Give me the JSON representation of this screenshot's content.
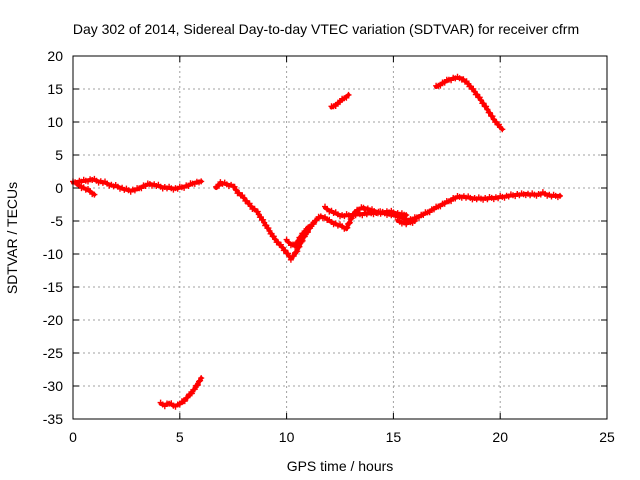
{
  "chart_data": {
    "type": "scatter",
    "title": "Day 302 of 2014, Sidereal Day-to-day VTEC variation (SDTVAR) for receiver cfrm",
    "xlabel": "GPS time / hours",
    "ylabel": "SDTVAR / TECUs",
    "xlim": [
      0,
      25
    ],
    "ylim": [
      -35,
      20
    ],
    "xticks": [
      0,
      5,
      10,
      15,
      20,
      25
    ],
    "yticks": [
      -35,
      -30,
      -25,
      -20,
      -15,
      -10,
      -5,
      0,
      5,
      10,
      15,
      20
    ],
    "grid": true,
    "series_color": "#ff0000",
    "grid_color": "#a0a0a0",
    "series": [
      {
        "name": "main",
        "points": [
          [
            0.0,
            0.8
          ],
          [
            0.3,
            1.0
          ],
          [
            0.6,
            1.1
          ],
          [
            0.9,
            1.3
          ],
          [
            1.2,
            1.0
          ],
          [
            1.5,
            0.8
          ],
          [
            1.8,
            0.4
          ],
          [
            2.1,
            0.2
          ],
          [
            2.4,
            -0.2
          ],
          [
            2.7,
            -0.4
          ],
          [
            3.0,
            -0.2
          ],
          [
            3.3,
            0.3
          ],
          [
            3.6,
            0.6
          ],
          [
            3.9,
            0.4
          ],
          [
            4.2,
            0.1
          ],
          [
            4.5,
            0.0
          ],
          [
            4.8,
            -0.1
          ],
          [
            5.1,
            0.1
          ],
          [
            5.4,
            0.4
          ],
          [
            5.7,
            0.8
          ],
          [
            6.0,
            1.0
          ]
        ]
      },
      {
        "name": "main-arm",
        "points": [
          [
            0.2,
            0.5
          ],
          [
            0.5,
            0.0
          ],
          [
            0.8,
            -0.5
          ],
          [
            1.0,
            -1.0
          ]
        ]
      },
      {
        "name": "main-2",
        "points": [
          [
            6.7,
            0.0
          ],
          [
            6.9,
            0.8
          ],
          [
            7.5,
            0.3
          ],
          [
            7.7,
            -0.6
          ],
          [
            8.0,
            -1.5
          ],
          [
            8.2,
            -2.3
          ],
          [
            8.4,
            -3.0
          ],
          [
            8.6,
            -3.5
          ],
          [
            8.8,
            -4.5
          ],
          [
            9.0,
            -5.5
          ],
          [
            9.2,
            -6.5
          ],
          [
            9.4,
            -7.5
          ],
          [
            9.6,
            -8.3
          ],
          [
            9.8,
            -9.0
          ],
          [
            10.0,
            -9.8
          ],
          [
            10.2,
            -10.7
          ],
          [
            10.4,
            -10.0
          ],
          [
            10.6,
            -8.8
          ],
          [
            10.8,
            -7.5
          ],
          [
            11.0,
            -6.5
          ],
          [
            11.2,
            -5.5
          ],
          [
            11.4,
            -4.8
          ],
          [
            11.6,
            -4.3
          ],
          [
            11.8,
            -4.5
          ],
          [
            12.0,
            -5.0
          ],
          [
            12.2,
            -5.3
          ],
          [
            12.4,
            -5.6
          ],
          [
            12.6,
            -5.8
          ],
          [
            12.8,
            -6.2
          ],
          [
            13.0,
            -4.8
          ],
          [
            13.2,
            -3.6
          ],
          [
            13.4,
            -3.2
          ],
          [
            13.6,
            -3.0
          ],
          [
            13.8,
            -3.2
          ],
          [
            14.0,
            -3.4
          ],
          [
            14.2,
            -3.6
          ],
          [
            14.4,
            -3.8
          ],
          [
            14.6,
            -3.8
          ],
          [
            14.8,
            -4.0
          ],
          [
            15.0,
            -4.1
          ],
          [
            15.2,
            -4.3
          ],
          [
            15.4,
            -4.5
          ],
          [
            15.6,
            -4.8
          ],
          [
            15.8,
            -4.8
          ],
          [
            16.0,
            -4.6
          ],
          [
            16.2,
            -4.3
          ],
          [
            16.4,
            -4.0
          ],
          [
            16.6,
            -3.7
          ],
          [
            16.8,
            -3.3
          ],
          [
            17.0,
            -3.0
          ],
          [
            17.2,
            -2.6
          ],
          [
            17.4,
            -2.3
          ],
          [
            17.6,
            -2.0
          ],
          [
            17.8,
            -1.6
          ],
          [
            18.0,
            -1.4
          ],
          [
            18.2,
            -1.3
          ],
          [
            18.4,
            -1.4
          ],
          [
            18.6,
            -1.5
          ],
          [
            18.8,
            -1.6
          ],
          [
            19.0,
            -1.6
          ],
          [
            19.2,
            -1.6
          ],
          [
            19.4,
            -1.6
          ],
          [
            19.6,
            -1.5
          ],
          [
            19.8,
            -1.5
          ],
          [
            20.0,
            -1.4
          ],
          [
            20.2,
            -1.3
          ],
          [
            20.4,
            -1.2
          ],
          [
            20.6,
            -1.1
          ],
          [
            20.8,
            -1.0
          ],
          [
            21.0,
            -1.0
          ],
          [
            21.2,
            -0.9
          ],
          [
            21.4,
            -1.0
          ],
          [
            21.6,
            -1.0
          ],
          [
            21.8,
            -1.0
          ],
          [
            22.0,
            -0.8
          ],
          [
            22.2,
            -1.0
          ],
          [
            22.4,
            -1.2
          ],
          [
            22.6,
            -1.2
          ],
          [
            22.8,
            -1.2
          ]
        ]
      },
      {
        "name": "branch-dip",
        "points": [
          [
            10.0,
            -8.0
          ],
          [
            10.2,
            -8.5
          ],
          [
            10.4,
            -8.8
          ],
          [
            10.6,
            -7.6
          ],
          [
            10.8,
            -6.8
          ],
          [
            11.0,
            -6.0
          ]
        ]
      },
      {
        "name": "branch-upper",
        "points": [
          [
            11.8,
            -3.0
          ],
          [
            12.0,
            -3.4
          ],
          [
            12.2,
            -3.7
          ],
          [
            12.4,
            -4.0
          ],
          [
            12.6,
            -4.2
          ],
          [
            14.8,
            -3.6
          ],
          [
            15.0,
            -3.7
          ],
          [
            15.2,
            -3.9
          ],
          [
            15.4,
            -4.0
          ],
          [
            15.6,
            -4.1
          ]
        ]
      },
      {
        "name": "branch-low",
        "points": [
          [
            15.2,
            -5.0
          ],
          [
            15.4,
            -5.2
          ],
          [
            15.6,
            -5.4
          ],
          [
            15.8,
            -5.2
          ],
          [
            16.0,
            -5.0
          ]
        ]
      },
      {
        "name": "upper-arc",
        "points": [
          [
            17.0,
            15.3
          ],
          [
            17.3,
            15.9
          ],
          [
            17.6,
            16.4
          ],
          [
            17.9,
            16.7
          ],
          [
            18.2,
            16.6
          ],
          [
            18.5,
            15.8
          ],
          [
            18.8,
            14.6
          ],
          [
            19.1,
            13.3
          ],
          [
            19.4,
            11.9
          ],
          [
            19.7,
            10.4
          ],
          [
            20.0,
            9.2
          ],
          [
            20.1,
            8.9
          ]
        ]
      },
      {
        "name": "upper-short",
        "points": [
          [
            12.1,
            12.2
          ],
          [
            12.3,
            12.6
          ],
          [
            12.5,
            13.1
          ],
          [
            12.7,
            13.6
          ],
          [
            12.9,
            14.1
          ]
        ]
      },
      {
        "name": "lower-arc",
        "points": [
          [
            4.1,
            -32.7
          ],
          [
            4.3,
            -32.9
          ],
          [
            4.5,
            -32.6
          ],
          [
            4.7,
            -33.0
          ],
          [
            4.9,
            -32.9
          ],
          [
            5.1,
            -32.5
          ],
          [
            5.3,
            -31.9
          ],
          [
            5.5,
            -31.2
          ],
          [
            5.7,
            -30.4
          ],
          [
            5.9,
            -29.4
          ],
          [
            6.0,
            -28.8
          ]
        ]
      }
    ]
  }
}
